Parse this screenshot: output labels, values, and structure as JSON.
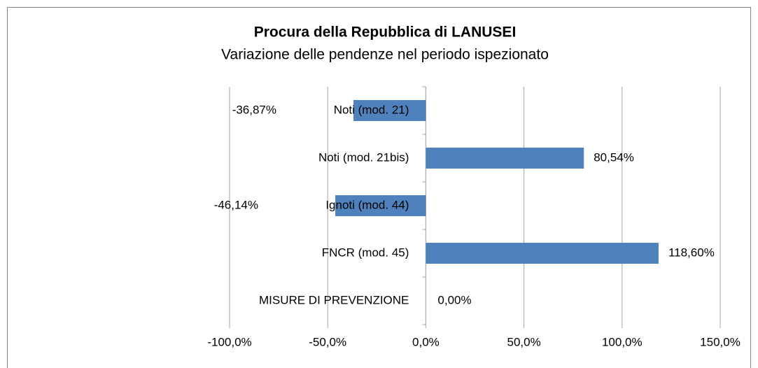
{
  "chart_data": {
    "type": "bar",
    "orientation": "horizontal",
    "title": "Procura della Repubblica di LANUSEI",
    "subtitle": "Variazione delle pendenze nel periodo ispezionato",
    "categories": [
      "Noti (mod. 21)",
      "Noti (mod. 21bis)",
      "Ignoti (mod. 44)",
      "FNCR (mod. 45)",
      "MISURE DI PREVENZIONE"
    ],
    "values": [
      -36.87,
      80.54,
      -46.14,
      118.6,
      0
    ],
    "value_labels": [
      "-36,87%",
      "80,54%",
      "-46,14%",
      "118,60%",
      "0,00%"
    ],
    "color": "#4f81bd",
    "xlim": [
      -100,
      150
    ],
    "xticks": [
      {
        "value": -100,
        "label": "-100,0%"
      },
      {
        "value": -50,
        "label": "-50,0%"
      },
      {
        "value": 0,
        "label": "0,0%"
      },
      {
        "value": 50,
        "label": "50,0%"
      },
      {
        "value": 100,
        "label": "100,0%"
      },
      {
        "value": 150,
        "label": "150,0%"
      }
    ],
    "grid": true
  }
}
